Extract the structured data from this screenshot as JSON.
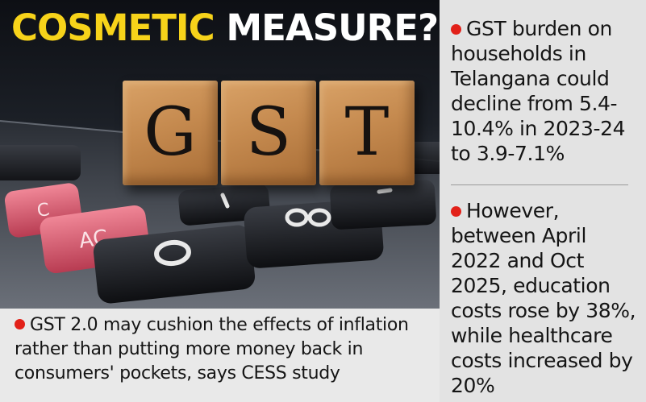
{
  "headline": {
    "highlight": "COSMETIC",
    "rest": "MEASURE?"
  },
  "photo": {
    "block_letters": [
      "G",
      "S",
      "T"
    ]
  },
  "caption": "GST 2.0 may cushion the effects of inflation rather than putting more money back in consumers' pockets, says CESS study",
  "side_notes": [
    "GST burden on households in Telangana could decline from 5.4-10.4% in 2023-24 to 3.9-7.1%",
    "However, between April 2022 and Oct 2025, education costs rose by 38%, while healthcare costs increased by 20%"
  ],
  "colors": {
    "headline_accent": "#f7d31a",
    "bullet": "#e22119",
    "block_wood": "#c58a4f"
  }
}
